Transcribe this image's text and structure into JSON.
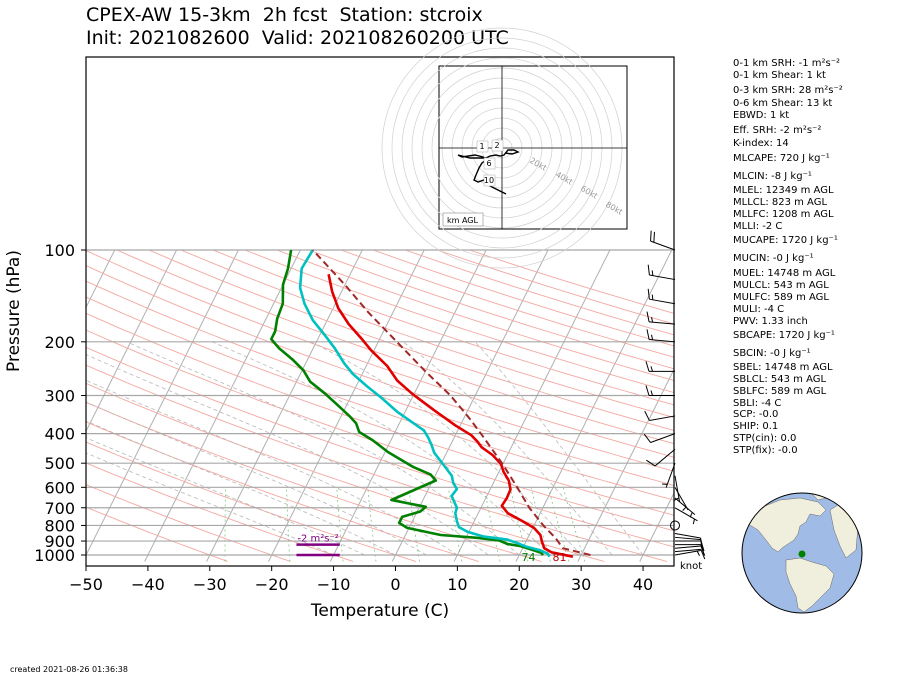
{
  "title_line1": "CPEX-AW 15-3km  2h fcst  Station: stcroix",
  "title_line2": "Init: 2021082600  Valid: 202108260200 UTC",
  "created": "created 2021-08-26 01:36:38",
  "indices": [
    "0-1 km SRH: -1 m²s⁻²",
    "0-1 km Shear: 1 kt",
    "0-3 km SRH: 28 m²s⁻²",
    "0-6 km Shear: 13 kt",
    "EBWD: 1 kt",
    "Eff. SRH: -2 m²s⁻²",
    "K-index: 14",
    "MLCAPE: 720 J kg⁻¹",
    "MLCIN: -8 J kg⁻¹",
    "MLEL: 12349 m AGL",
    "MLLCL: 823 m AGL",
    "MLLFC: 1208 m AGL",
    "MLLI: -2 C",
    "MUCAPE: 1720 J kg⁻¹",
    "MUCIN: -0 J kg⁻¹",
    "MUEL: 14748 m AGL",
    "MULCL: 543 m AGL",
    "MULFC: 589 m AGL",
    "MULI: -4 C",
    "PWV: 1.33 inch",
    "SBCAPE: 1720 J kg⁻¹",
    "SBCIN: -0 J kg⁻¹",
    "SBEL: 14748 m AGL",
    "SBLCL: 543 m AGL",
    "SBLFC: 589 m AGL",
    "SBLI: -4 C",
    "SCP: -0.0",
    "SHIP: 0.1",
    "STP(cin): 0.0",
    "STP(fix): -0.0"
  ],
  "chart_data": {
    "type": "line",
    "xlabel": "Temperature (C)",
    "ylabel": "Pressure (hPa)",
    "xlim": [
      -50,
      45
    ],
    "ylim": [
      1050,
      100
    ],
    "xticks": [
      -50,
      -40,
      -30,
      -20,
      -10,
      0,
      10,
      20,
      30,
      40
    ],
    "yticks": [
      100,
      200,
      300,
      400,
      500,
      600,
      700,
      800,
      900,
      1000
    ],
    "y_scale": "log",
    "series": [
      {
        "role": "temperature",
        "color": "#e00000",
        "points": [
          [
            28.8,
            1013
          ],
          [
            25,
            980
          ],
          [
            23.5,
            950
          ],
          [
            22.6,
            905
          ],
          [
            21.8,
            860
          ],
          [
            20.2,
            815
          ],
          [
            17.5,
            770
          ],
          [
            14.8,
            730
          ],
          [
            13.2,
            690
          ],
          [
            13.4,
            650
          ],
          [
            13.3,
            610
          ],
          [
            12.3,
            570
          ],
          [
            10.8,
            535
          ],
          [
            9.7,
            503
          ],
          [
            7.6,
            470
          ],
          [
            5.2,
            443
          ],
          [
            4.1,
            425
          ],
          [
            2.6,
            405
          ],
          [
            -0.9,
            375
          ],
          [
            -5.5,
            335
          ],
          [
            -10.2,
            297
          ],
          [
            -13.8,
            268
          ],
          [
            -16.6,
            240
          ],
          [
            -20.5,
            213
          ],
          [
            -23,
            195
          ],
          [
            -26.2,
            175
          ],
          [
            -29.2,
            155
          ],
          [
            -31.5,
            137
          ],
          [
            -33.5,
            120
          ]
        ]
      },
      {
        "role": "dewpoint",
        "color": "#008000",
        "points": [
          [
            23.8,
            1003
          ],
          [
            23.5,
            985
          ],
          [
            21.7,
            962
          ],
          [
            19.5,
            935
          ],
          [
            17.2,
            920
          ],
          [
            15.5,
            895
          ],
          [
            11.8,
            878
          ],
          [
            5.7,
            860
          ],
          [
            -0.3,
            815
          ],
          [
            -2,
            785
          ],
          [
            -2,
            750
          ],
          [
            0.5,
            720
          ],
          [
            1,
            695
          ],
          [
            -5.1,
            660
          ],
          [
            0.5,
            570
          ],
          [
            -0.8,
            545
          ],
          [
            -4.2,
            515
          ],
          [
            -9.5,
            460
          ],
          [
            -13,
            420
          ],
          [
            -15.8,
            395
          ],
          [
            -17,
            370
          ],
          [
            -18.5,
            352
          ],
          [
            -21.2,
            325
          ],
          [
            -24.5,
            295
          ],
          [
            -27.8,
            270
          ],
          [
            -29.8,
            248
          ],
          [
            -32.5,
            228
          ],
          [
            -35.5,
            210
          ],
          [
            -37.5,
            196
          ],
          [
            -37.5,
            185
          ],
          [
            -38.2,
            168
          ],
          [
            -38.5,
            150
          ],
          [
            -40,
            130
          ],
          [
            -40.5,
            115
          ],
          [
            -41.5,
            100
          ]
        ]
      },
      {
        "role": "wetbulb",
        "color": "#00c0c0",
        "points": [
          [
            25,
            1013
          ],
          [
            24.5,
            990
          ],
          [
            23,
            965
          ],
          [
            20.5,
            940
          ],
          [
            18.8,
            915
          ],
          [
            16.8,
            890
          ],
          [
            12.8,
            870
          ],
          [
            9.8,
            840
          ],
          [
            8,
            810
          ],
          [
            7.2,
            775
          ],
          [
            6.3,
            730
          ],
          [
            6.1,
            700
          ],
          [
            4.3,
            640
          ],
          [
            4.6,
            608
          ],
          [
            3.5,
            580
          ],
          [
            2.7,
            550
          ],
          [
            1.2,
            520
          ],
          [
            -0.4,
            490
          ],
          [
            -2,
            462
          ],
          [
            -3,
            437
          ],
          [
            -4.2,
            412
          ],
          [
            -5.5,
            390
          ],
          [
            -7.7,
            370
          ],
          [
            -11.2,
            340
          ],
          [
            -15,
            305
          ],
          [
            -18.2,
            280
          ],
          [
            -21.5,
            255
          ],
          [
            -23.8,
            235
          ],
          [
            -26.5,
            210
          ],
          [
            -29.2,
            190
          ],
          [
            -32.3,
            170
          ],
          [
            -35,
            150
          ],
          [
            -37,
            133
          ],
          [
            -38.3,
            115
          ],
          [
            -38,
            100
          ]
        ]
      },
      {
        "role": "parcel",
        "color": "#a02828",
        "dashed": true,
        "points": [
          [
            31.5,
            1000
          ],
          [
            26.5,
            950
          ],
          [
            24.5,
            880
          ],
          [
            21.5,
            800
          ],
          [
            17.8,
            700
          ],
          [
            14.2,
            600
          ],
          [
            9.8,
            500
          ],
          [
            4,
            400
          ],
          [
            0.8,
            355
          ],
          [
            -4,
            300
          ],
          [
            -10,
            250
          ],
          [
            -17,
            200
          ],
          [
            -24,
            160
          ],
          [
            -30,
            130
          ],
          [
            -38,
            100
          ]
        ]
      }
    ],
    "surface_labels": [
      {
        "text": "74",
        "color": "#008000",
        "x": 22,
        "p": 1048
      },
      {
        "text": "81",
        "color": "#c00000",
        "x": 27,
        "p": 1048
      }
    ],
    "effective_layer": {
      "text": "-2 m²s⁻²",
      "color": "#800080",
      "x1": -16,
      "x2": -9,
      "p_top": 925,
      "p_bottom": 1000
    },
    "wind_units": "knot",
    "wind_barbs": [
      {
        "p": 1000,
        "speed": 8,
        "dir": 80
      },
      {
        "p": 975,
        "speed": 10,
        "dir": 85
      },
      {
        "p": 950,
        "speed": 10,
        "dir": 85
      },
      {
        "p": 925,
        "speed": 10,
        "dir": 90
      },
      {
        "p": 900,
        "speed": 10,
        "dir": 90
      },
      {
        "p": 875,
        "speed": 10,
        "dir": 95
      },
      {
        "p": 850,
        "speed": 10,
        "dir": 100
      },
      {
        "p": 800,
        "speed": 0,
        "dir": 0
      },
      {
        "p": 700,
        "speed": 5,
        "dir": 120
      },
      {
        "p": 650,
        "speed": 5,
        "dir": 130
      },
      {
        "p": 600,
        "speed": 5,
        "dir": 150
      },
      {
        "p": 550,
        "speed": 5,
        "dir": 170
      },
      {
        "p": 500,
        "speed": 5,
        "dir": 200
      },
      {
        "p": 450,
        "speed": 10,
        "dir": 230
      },
      {
        "p": 400,
        "speed": 10,
        "dir": 250
      },
      {
        "p": 350,
        "speed": 10,
        "dir": 260
      },
      {
        "p": 300,
        "speed": 15,
        "dir": 270
      },
      {
        "p": 250,
        "speed": 15,
        "dir": 270
      },
      {
        "p": 200,
        "speed": 15,
        "dir": 275
      },
      {
        "p": 175,
        "speed": 15,
        "dir": 275
      },
      {
        "p": 150,
        "speed": 15,
        "dir": 280
      },
      {
        "p": 125,
        "speed": 15,
        "dir": 280
      },
      {
        "p": 100,
        "speed": 20,
        "dir": 290
      }
    ],
    "hodograph": {
      "ring_labels": [
        "20kt",
        "40kt",
        "60kt",
        "80kt"
      ],
      "height_labels": [
        "1",
        "2",
        "6",
        "10"
      ],
      "legend": "km AGL"
    },
    "globe": {
      "land_color": "#f0eedc",
      "ocean_color": "#a0bce6",
      "marker_color": "#008000"
    }
  }
}
